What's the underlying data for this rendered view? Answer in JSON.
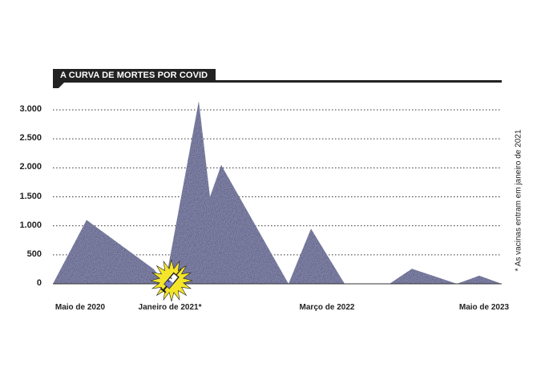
{
  "title": "A CURVA DE MORTES POR COVID",
  "footnote": "* As vacinas entram em janeiro de 2021",
  "chart_data": {
    "type": "area",
    "title": "A CURVA DE MORTES POR COVID",
    "xlabel": "",
    "ylabel": "",
    "ylim": [
      0,
      3100
    ],
    "yticks": [
      0,
      500,
      1000,
      1500,
      2000,
      2500,
      3000
    ],
    "ytick_labels": [
      "0",
      "500",
      "1.000",
      "1.500",
      "2.000",
      "2.500",
      "3.000"
    ],
    "xticks": [
      {
        "label": "Maio de 2020",
        "x": "2020-05"
      },
      {
        "label": "Janeiro de 2021*",
        "x": "2021-01"
      },
      {
        "label": "Março de 2022",
        "x": "2022-03"
      },
      {
        "label": "Maio de 2023",
        "x": "2023-05"
      }
    ],
    "x": [
      "2020-03",
      "2020-06",
      "2020-12",
      "2021-01",
      "2021-04",
      "2021-05",
      "2021-06",
      "2021-12",
      "2022-02",
      "2022-05",
      "2022-09",
      "2022-11",
      "2023-03",
      "2023-05",
      "2023-07"
    ],
    "values": [
      0,
      1100,
      250,
      0,
      3150,
      1500,
      2050,
      0,
      950,
      0,
      0,
      260,
      0,
      140,
      0
    ],
    "grid": true,
    "legend": "none",
    "colors": {
      "area": "#4a4e85",
      "grid": "#333333",
      "text": "#222222",
      "starburst": "#f5e52a"
    },
    "annotation": {
      "icon": "syringe-starburst-icon",
      "x": "2021-01"
    }
  }
}
